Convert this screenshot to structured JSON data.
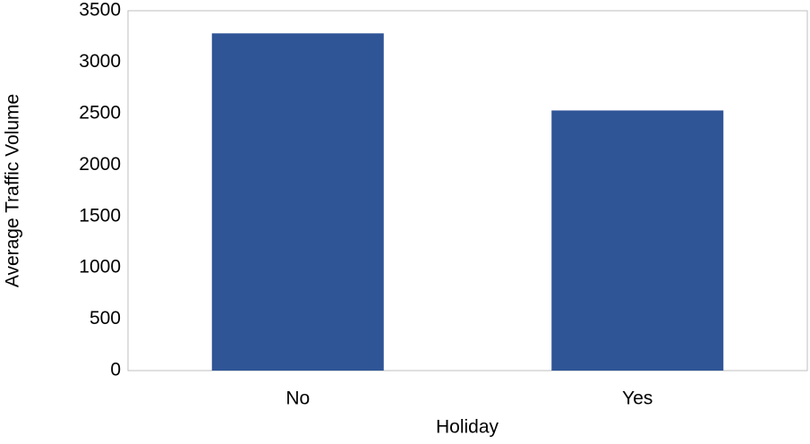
{
  "chart_data": {
    "type": "bar",
    "x_label": "Holiday",
    "y_label": "Average Traffic Volume",
    "categories": [
      "No",
      "Yes"
    ],
    "values": [
      3280,
      2530
    ],
    "color": "#2f5597",
    "ylim": [
      0,
      3500
    ],
    "yticks": [
      0,
      500,
      1000,
      1500,
      2000,
      2500,
      3000,
      3500
    ],
    "grid": false
  }
}
